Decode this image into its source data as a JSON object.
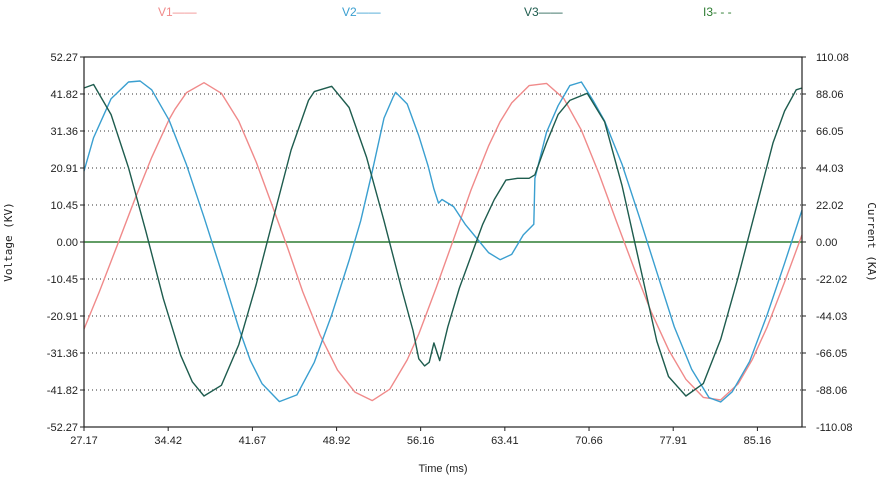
{
  "chart_data": {
    "type": "line",
    "xlabel": "Time (ms)",
    "ylabel": "Voltage (KV)",
    "y2label": "Current (KA)",
    "xlim": [
      27.17,
      89.0
    ],
    "ylim": [
      -52.27,
      52.27
    ],
    "y2lim": [
      -110.08,
      110.08
    ],
    "x_ticks": [
      "27.17",
      "34.42",
      "41.67",
      "48.92",
      "56.16",
      "63.41",
      "70.66",
      "77.91",
      "85.16"
    ],
    "y_ticks": [
      "52.27",
      "41.82",
      "31.36",
      "20.91",
      "10.45",
      "0.00",
      "-10.45",
      "-20.91",
      "-31.36",
      "-41.82",
      "-52.27"
    ],
    "y2_ticks": [
      "110.08",
      "88.06",
      "66.05",
      "44.03",
      "22.02",
      "0.00",
      "-22.02",
      "-44.03",
      "-66.05",
      "-88.06",
      "-110.08"
    ],
    "grid": true,
    "legend_position": "top",
    "series": [
      {
        "name": "V1",
        "legend_label": "V1——",
        "color": "#f08a8a",
        "x": [
          27.17,
          28.5,
          30.0,
          31.5,
          33.0,
          34.5,
          35.0,
          36.0,
          37.5,
          39.0,
          40.5,
          42.0,
          43.5,
          44.7,
          46.0,
          47.5,
          49.0,
          50.5,
          52.0,
          53.5,
          55.0,
          56.0,
          57.5,
          59.0,
          60.5,
          62.0,
          63.0,
          64.0,
          65.5,
          67.0,
          68.5,
          70.0,
          71.5,
          73.0,
          74.7,
          76.0,
          77.5,
          79.0,
          80.5,
          82.0,
          83.5,
          84.7,
          86.0,
          87.5,
          89.0
        ],
        "y": [
          -24.6,
          -14.0,
          -1.2,
          11.7,
          23.9,
          34.6,
          37.5,
          42.2,
          45.0,
          42.0,
          34.1,
          22.6,
          9.2,
          -1.6,
          -14.0,
          -26.3,
          -36.2,
          -42.4,
          -44.8,
          -41.6,
          -33.3,
          -26.0,
          -12.9,
          0.8,
          14.7,
          27.1,
          34.0,
          39.3,
          44.2,
          44.8,
          40.5,
          31.6,
          19.4,
          6.0,
          -8.8,
          -19.6,
          -30.4,
          -38.8,
          -43.9,
          -44.6,
          -40.1,
          -33.3,
          -24.0,
          -11.3,
          2.0
        ]
      },
      {
        "name": "V2",
        "legend_label": "V2——",
        "color": "#3a9fd0",
        "x": [
          27.17,
          28.0,
          29.5,
          31.0,
          32.0,
          33.0,
          34.5,
          36.0,
          37.5,
          39.0,
          40.5,
          41.5,
          42.5,
          44.0,
          45.5,
          47.0,
          48.5,
          50.0,
          51.0,
          52.0,
          53.0,
          53.8,
          54.0,
          55.0,
          56.0,
          56.8,
          57.3,
          57.7,
          58.0,
          59.0,
          60.0,
          61.0,
          62.0,
          63.0,
          64.0,
          65.0,
          65.9,
          66.0,
          67.0,
          68.0,
          69.0,
          70.0,
          71.0,
          72.0,
          73.5,
          75.0,
          76.5,
          78.0,
          79.5,
          81.0,
          82.0,
          83.0,
          84.5,
          86.0,
          87.5,
          89.0
        ],
        "y": [
          20.0,
          29.5,
          40.5,
          45.2,
          45.5,
          43.0,
          34.4,
          21.8,
          7.0,
          -8.4,
          -24.3,
          -33.5,
          -40.0,
          -45.1,
          -43.2,
          -34.0,
          -20.6,
          -5.2,
          6.0,
          20.0,
          35.0,
          41.0,
          42.3,
          39.0,
          30.0,
          21.5,
          15.0,
          11.0,
          12.0,
          10.0,
          5.0,
          1.0,
          -3.0,
          -5.0,
          -3.5,
          2.0,
          5.0,
          18.0,
          31.0,
          38.5,
          44.2,
          45.2,
          40.0,
          34.2,
          22.0,
          7.0,
          -8.5,
          -24.0,
          -36.0,
          -44.0,
          -45.2,
          -42.3,
          -33.7,
          -20.5,
          -6.0,
          9.0
        ]
      },
      {
        "name": "V3",
        "legend_label": "V3——",
        "color": "#1e5c4e",
        "x": [
          27.17,
          28.0,
          29.5,
          31.0,
          32.5,
          34.0,
          35.5,
          36.5,
          37.5,
          39.0,
          40.5,
          42.0,
          43.5,
          45.0,
          46.5,
          47.0,
          48.5,
          50.0,
          51.5,
          53.0,
          54.5,
          55.5,
          56.0,
          56.5,
          56.9,
          57.3,
          57.8,
          58.5,
          59.5,
          60.5,
          61.5,
          62.5,
          63.5,
          64.5,
          65.5,
          66.0,
          67.0,
          68.0,
          69.0,
          70.5,
          72.0,
          73.5,
          75.0,
          76.5,
          77.5,
          79.0,
          80.5,
          82.0,
          83.5,
          85.0,
          86.5,
          87.5,
          88.5,
          89.0
        ],
        "y": [
          43.5,
          44.5,
          36.0,
          21.0,
          3.0,
          -16.0,
          -32.0,
          -39.5,
          -43.5,
          -40.5,
          -29.0,
          -12.0,
          7.0,
          26.0,
          40.0,
          42.5,
          44.0,
          38.0,
          24.0,
          6.0,
          -13.0,
          -25.0,
          -33.0,
          -35.0,
          -34.0,
          -28.5,
          -33.5,
          -24.0,
          -13.0,
          -4.0,
          5.0,
          12.0,
          17.5,
          18.0,
          18.0,
          19.0,
          28.0,
          36.0,
          40.0,
          42.0,
          34.0,
          16.0,
          -6.0,
          -28.0,
          -38.0,
          -43.5,
          -40.0,
          -27.5,
          -10.0,
          9.0,
          28.0,
          37.0,
          43.0,
          43.5
        ]
      },
      {
        "name": "I3",
        "legend_label": "I3- - -",
        "color": "#2e7d32",
        "axis": "right",
        "x": [
          27.17,
          89.0
        ],
        "y": [
          0.0,
          0.0
        ]
      }
    ]
  }
}
